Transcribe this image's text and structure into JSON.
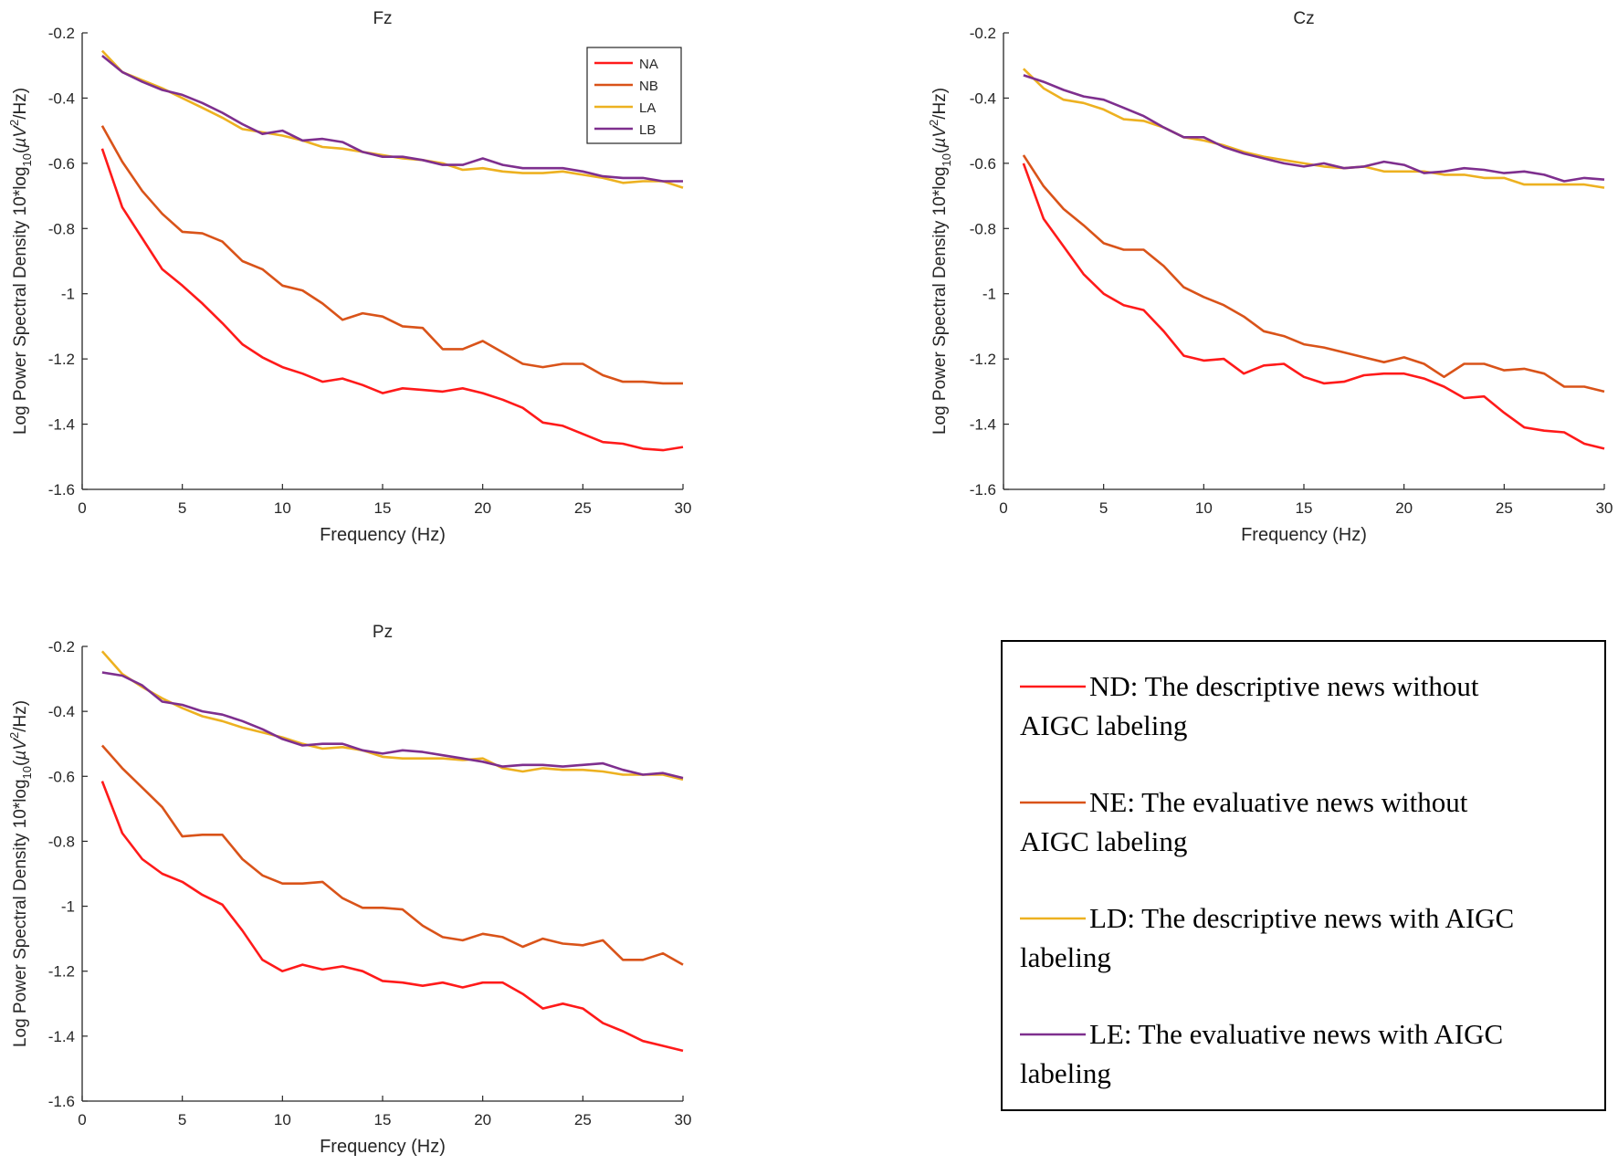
{
  "chart_data": [
    {
      "type": "line",
      "title": "Fz",
      "xlabel": "Frequency (Hz)",
      "ylabel": "Log Power Spectral Density 10*log10(µV2/Hz)",
      "xlim": [
        0,
        30
      ],
      "ylim": [
        -1.6,
        -0.2
      ],
      "xticks": [
        0,
        5,
        10,
        15,
        20,
        25,
        30
      ],
      "yticks": [
        -0.2,
        -0.4,
        -0.6,
        -0.8,
        -1,
        -1.2,
        -1.4,
        -1.6
      ],
      "x": [
        1,
        2,
        3,
        4,
        5,
        6,
        7,
        8,
        9,
        10,
        11,
        12,
        13,
        14,
        15,
        16,
        17,
        18,
        19,
        20,
        21,
        22,
        23,
        24,
        25,
        26,
        27,
        28,
        29,
        30
      ],
      "legend": [
        "NA",
        "NB",
        "LA",
        "LB"
      ],
      "legend_position": "top-right",
      "series": [
        {
          "name": "NA",
          "color": "#ff1a1a",
          "values": [
            -0.555,
            -0.735,
            -0.83,
            -0.925,
            -0.975,
            -1.03,
            -1.09,
            -1.155,
            -1.195,
            -1.225,
            -1.245,
            -1.27,
            -1.26,
            -1.28,
            -1.305,
            -1.29,
            -1.295,
            -1.3,
            -1.29,
            -1.305,
            -1.325,
            -1.35,
            -1.395,
            -1.405,
            -1.43,
            -1.455,
            -1.46,
            -1.475,
            -1.48,
            -1.47
          ]
        },
        {
          "name": "NB",
          "color": "#d95319",
          "values": [
            -0.485,
            -0.595,
            -0.685,
            -0.755,
            -0.81,
            -0.815,
            -0.84,
            -0.9,
            -0.925,
            -0.975,
            -0.99,
            -1.03,
            -1.08,
            -1.06,
            -1.07,
            -1.1,
            -1.105,
            -1.17,
            -1.17,
            -1.145,
            -1.18,
            -1.215,
            -1.225,
            -1.215,
            -1.215,
            -1.25,
            -1.27,
            -1.27,
            -1.275,
            -1.275
          ]
        },
        {
          "name": "LA",
          "color": "#edb120",
          "values": [
            -0.255,
            -0.32,
            -0.345,
            -0.37,
            -0.4,
            -0.43,
            -0.46,
            -0.495,
            -0.505,
            -0.515,
            -0.53,
            -0.55,
            -0.555,
            -0.565,
            -0.575,
            -0.585,
            -0.59,
            -0.6,
            -0.62,
            -0.615,
            -0.625,
            -0.63,
            -0.63,
            -0.625,
            -0.635,
            -0.645,
            -0.66,
            -0.655,
            -0.655,
            -0.675
          ]
        },
        {
          "name": "LB",
          "color": "#7e2f8e",
          "values": [
            -0.27,
            -0.32,
            -0.35,
            -0.375,
            -0.39,
            -0.415,
            -0.445,
            -0.48,
            -0.51,
            -0.5,
            -0.53,
            -0.525,
            -0.535,
            -0.565,
            -0.58,
            -0.58,
            -0.59,
            -0.605,
            -0.605,
            -0.585,
            -0.605,
            -0.615,
            -0.615,
            -0.615,
            -0.625,
            -0.64,
            -0.645,
            -0.645,
            -0.655,
            -0.655
          ]
        }
      ]
    },
    {
      "type": "line",
      "title": "Cz",
      "xlabel": "Frequency (Hz)",
      "ylabel": "Log Power Spectral Density 10*log10(µV2/Hz)",
      "xlim": [
        0,
        30
      ],
      "ylim": [
        -1.6,
        -0.2
      ],
      "xticks": [
        0,
        5,
        10,
        15,
        20,
        25,
        30
      ],
      "yticks": [
        -0.2,
        -0.4,
        -0.6,
        -0.8,
        -1,
        -1.2,
        -1.4,
        -1.6
      ],
      "x": [
        1,
        2,
        3,
        4,
        5,
        6,
        7,
        8,
        9,
        10,
        11,
        12,
        13,
        14,
        15,
        16,
        17,
        18,
        19,
        20,
        21,
        22,
        23,
        24,
        25,
        26,
        27,
        28,
        29,
        30
      ],
      "series": [
        {
          "name": "NA",
          "color": "#ff1a1a",
          "values": [
            -0.6,
            -0.77,
            -0.855,
            -0.94,
            -1.0,
            -1.035,
            -1.05,
            -1.115,
            -1.19,
            -1.205,
            -1.2,
            -1.245,
            -1.22,
            -1.215,
            -1.255,
            -1.275,
            -1.27,
            -1.25,
            -1.245,
            -1.245,
            -1.26,
            -1.285,
            -1.32,
            -1.315,
            -1.365,
            -1.41,
            -1.42,
            -1.425,
            -1.46,
            -1.475
          ]
        },
        {
          "name": "NB",
          "color": "#d95319",
          "values": [
            -0.575,
            -0.67,
            -0.74,
            -0.79,
            -0.845,
            -0.865,
            -0.865,
            -0.915,
            -0.98,
            -1.01,
            -1.035,
            -1.07,
            -1.115,
            -1.13,
            -1.155,
            -1.165,
            -1.18,
            -1.195,
            -1.21,
            -1.195,
            -1.215,
            -1.255,
            -1.215,
            -1.215,
            -1.235,
            -1.23,
            -1.245,
            -1.285,
            -1.285,
            -1.3
          ]
        },
        {
          "name": "LA",
          "color": "#edb120",
          "values": [
            -0.31,
            -0.37,
            -0.405,
            -0.415,
            -0.435,
            -0.465,
            -0.47,
            -0.49,
            -0.52,
            -0.53,
            -0.545,
            -0.565,
            -0.58,
            -0.59,
            -0.6,
            -0.61,
            -0.615,
            -0.61,
            -0.625,
            -0.625,
            -0.625,
            -0.635,
            -0.635,
            -0.645,
            -0.645,
            -0.665,
            -0.665,
            -0.665,
            -0.665,
            -0.675
          ]
        },
        {
          "name": "LB",
          "color": "#7e2f8e",
          "values": [
            -0.33,
            -0.35,
            -0.375,
            -0.395,
            -0.405,
            -0.43,
            -0.455,
            -0.49,
            -0.52,
            -0.52,
            -0.55,
            -0.57,
            -0.585,
            -0.6,
            -0.61,
            -0.6,
            -0.615,
            -0.61,
            -0.595,
            -0.605,
            -0.63,
            -0.625,
            -0.615,
            -0.62,
            -0.63,
            -0.625,
            -0.635,
            -0.655,
            -0.645,
            -0.65
          ]
        }
      ]
    },
    {
      "type": "line",
      "title": "Pz",
      "xlabel": "Frequency (Hz)",
      "ylabel": "Log Power Spectral Density 10*log10(µV2/Hz)",
      "xlim": [
        0,
        30
      ],
      "ylim": [
        -1.6,
        -0.2
      ],
      "xticks": [
        0,
        5,
        10,
        15,
        20,
        25,
        30
      ],
      "yticks": [
        -0.2,
        -0.4,
        -0.6,
        -0.8,
        -1,
        -1.2,
        -1.4,
        -1.6
      ],
      "x": [
        1,
        2,
        3,
        4,
        5,
        6,
        7,
        8,
        9,
        10,
        11,
        12,
        13,
        14,
        15,
        16,
        17,
        18,
        19,
        20,
        21,
        22,
        23,
        24,
        25,
        26,
        27,
        28,
        29,
        30
      ],
      "series": [
        {
          "name": "NA",
          "color": "#ff1a1a",
          "values": [
            -0.615,
            -0.775,
            -0.855,
            -0.9,
            -0.925,
            -0.965,
            -0.995,
            -1.075,
            -1.165,
            -1.2,
            -1.18,
            -1.195,
            -1.185,
            -1.2,
            -1.23,
            -1.235,
            -1.245,
            -1.235,
            -1.25,
            -1.235,
            -1.235,
            -1.27,
            -1.315,
            -1.3,
            -1.315,
            -1.36,
            -1.385,
            -1.415,
            -1.43,
            -1.445
          ]
        },
        {
          "name": "NB",
          "color": "#d95319",
          "values": [
            -0.505,
            -0.575,
            -0.635,
            -0.695,
            -0.785,
            -0.78,
            -0.78,
            -0.855,
            -0.905,
            -0.93,
            -0.93,
            -0.925,
            -0.975,
            -1.005,
            -1.005,
            -1.01,
            -1.06,
            -1.095,
            -1.105,
            -1.085,
            -1.095,
            -1.125,
            -1.1,
            -1.115,
            -1.12,
            -1.105,
            -1.165,
            -1.165,
            -1.145,
            -1.18
          ]
        },
        {
          "name": "LA",
          "color": "#edb120",
          "values": [
            -0.215,
            -0.285,
            -0.325,
            -0.36,
            -0.39,
            -0.415,
            -0.43,
            -0.45,
            -0.465,
            -0.48,
            -0.5,
            -0.515,
            -0.51,
            -0.52,
            -0.54,
            -0.545,
            -0.545,
            -0.545,
            -0.55,
            -0.545,
            -0.575,
            -0.585,
            -0.575,
            -0.58,
            -0.58,
            -0.585,
            -0.595,
            -0.595,
            -0.595,
            -0.61
          ]
        },
        {
          "name": "LB",
          "color": "#7e2f8e",
          "values": [
            -0.28,
            -0.29,
            -0.32,
            -0.37,
            -0.38,
            -0.4,
            -0.41,
            -0.43,
            -0.455,
            -0.485,
            -0.505,
            -0.5,
            -0.5,
            -0.52,
            -0.53,
            -0.52,
            -0.525,
            -0.535,
            -0.545,
            -0.555,
            -0.57,
            -0.565,
            -0.565,
            -0.57,
            -0.565,
            -0.56,
            -0.58,
            -0.595,
            -0.59,
            -0.605
          ]
        }
      ]
    }
  ],
  "side_legend": {
    "items": [
      {
        "text": "ND: The descriptive news without AIGC labeling",
        "color": "#ff1a1a"
      },
      {
        "text": "NE: The evaluative news without AIGC labeling",
        "color": "#d95319"
      },
      {
        "text": "LD: The descriptive news with AIGC labeling",
        "color": "#edb120"
      },
      {
        "text": "LE: The evaluative news with AIGC labeling",
        "color": "#7e2f8e"
      }
    ]
  }
}
